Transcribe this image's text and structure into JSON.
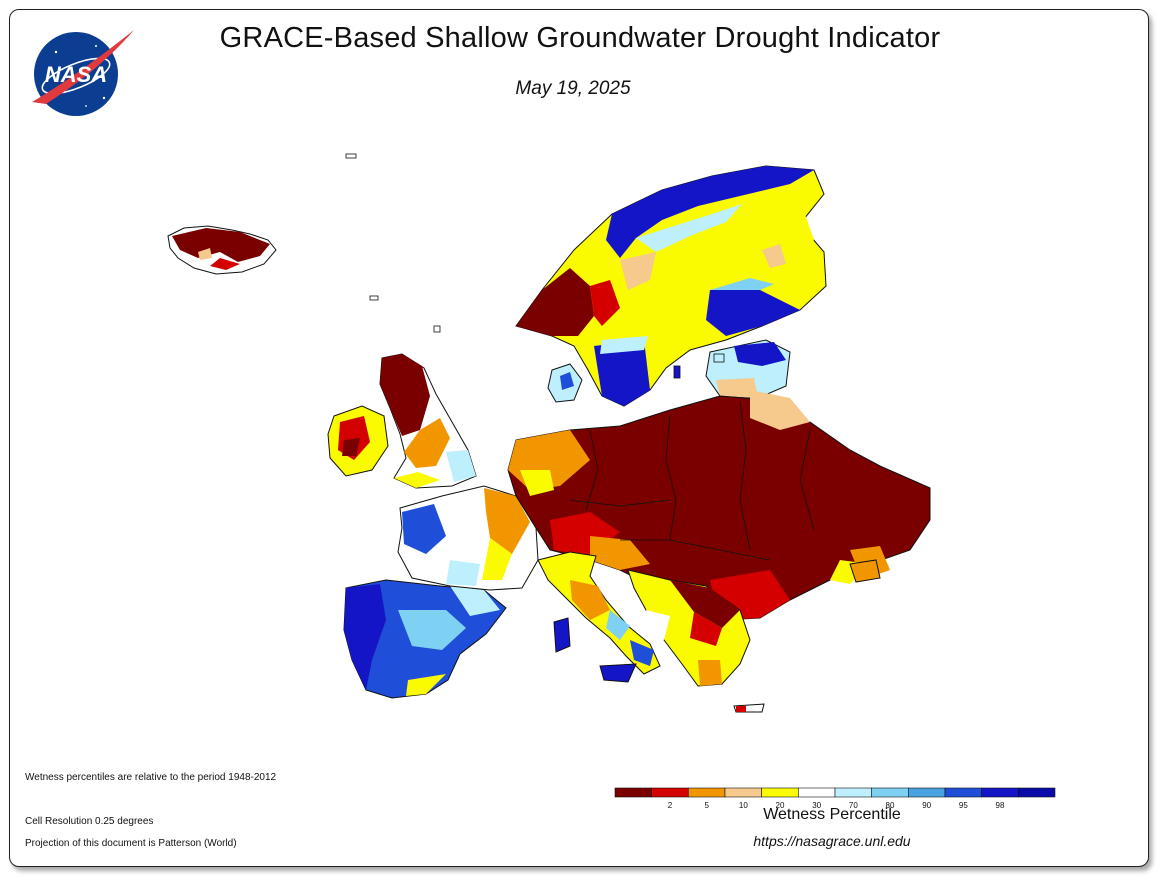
{
  "header": {
    "title": "GRACE-Based Shallow Groundwater Drought Indicator",
    "date": "May 19, 2025",
    "logo_text": "NASA"
  },
  "notes": {
    "period": "Wetness percentiles are relative to the period 1948-2012",
    "resolution": "Cell Resolution 0.25 degrees",
    "projection": "Projection of this document is Patterson (World)"
  },
  "legend": {
    "title": "Wetness Percentile",
    "url": "https://nasagrace.unl.edu",
    "colors": [
      "#7a0000",
      "#d40000",
      "#f29600",
      "#f6c98c",
      "#fafa00",
      "#ffffff",
      "#bdeffc",
      "#7fd1f4",
      "#4aa3e0",
      "#1f4ed8",
      "#1515c8",
      "#0a0aa8"
    ],
    "ticks": [
      "2",
      "5",
      "10",
      "20",
      "30",
      "70",
      "80",
      "90",
      "95",
      "98"
    ]
  },
  "map": {
    "region": "Europe",
    "colors": {
      "land_outline": "#111111",
      "dark_red": "#7a0000",
      "red": "#d40000",
      "orange": "#f29600",
      "tan": "#f6c98c",
      "yellow": "#fafa00",
      "white": "#ffffff",
      "light_blue": "#bdeffc",
      "blue": "#4aa3e0",
      "dark_blue": "#1515c8"
    }
  }
}
